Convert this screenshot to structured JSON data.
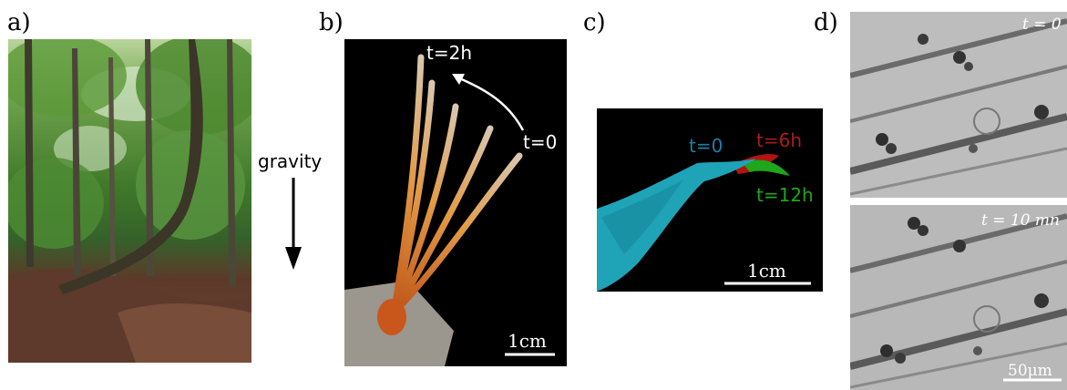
{
  "figure": {
    "panel_a": {
      "label": "a)"
    },
    "panel_b": {
      "label": "b)",
      "time_start": "t=0",
      "time_end": "t=2h",
      "scale_bar": "1cm"
    },
    "gravity": {
      "label": "gravity"
    },
    "panel_c": {
      "label": "c)",
      "t0": "t=0",
      "t6": "t=6h",
      "t12": "t=12h",
      "scale_bar": "1cm"
    },
    "panel_d": {
      "label": "d)",
      "time_top": "t = 0",
      "time_bottom": "t = 10 mn",
      "scale_bar": "50μm"
    }
  },
  "colors": {
    "cyan_shape": "#1fa3b7",
    "red_shape": "#b3140f",
    "green_shape": "#1fa61a",
    "t0_text": "#1e7ea8",
    "t6_text": "#a5201a",
    "t12_text": "#1fa61a"
  }
}
